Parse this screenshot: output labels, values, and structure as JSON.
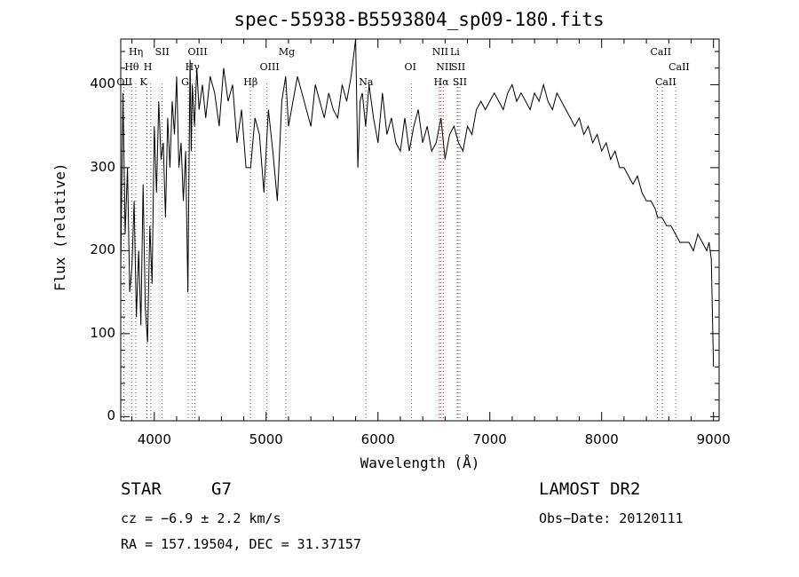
{
  "chart_data": {
    "type": "line",
    "title": "spec-55938-B5593804_sp09-180.fits",
    "xlabel": "Wavelength (Å)",
    "ylabel": "Flux (relative)",
    "xlim": [
      3700,
      9050
    ],
    "ylim": [
      -5,
      455
    ],
    "x_ticks": [
      "4000",
      "5000",
      "6000",
      "7000",
      "8000",
      "9000"
    ],
    "y_ticks": [
      "0",
      "100",
      "200",
      "300",
      "400"
    ],
    "grid": false,
    "series": [
      {
        "x": [
          3700,
          3720,
          3740,
          3760,
          3780,
          3800,
          3820,
          3840,
          3860,
          3880,
          3900,
          3920,
          3940,
          3960,
          3980,
          4000,
          4020,
          4040,
          4060,
          4080,
          4100,
          4120,
          4140,
          4160,
          4180,
          4200,
          4220,
          4240,
          4260,
          4280,
          4300,
          4320,
          4330,
          4340,
          4360,
          4380,
          4400,
          4430,
          4460,
          4500,
          4540,
          4580,
          4620,
          4660,
          4700,
          4740,
          4780,
          4820,
          4861,
          4900,
          4940,
          4980,
          5020,
          5060,
          5100,
          5140,
          5175,
          5200,
          5240,
          5280,
          5320,
          5360,
          5400,
          5440,
          5480,
          5520,
          5560,
          5600,
          5640,
          5680,
          5720,
          5760,
          5800,
          5820,
          5840,
          5860,
          5890,
          5920,
          5960,
          6000,
          6040,
          6080,
          6120,
          6160,
          6200,
          6240,
          6280,
          6320,
          6360,
          6400,
          6440,
          6480,
          6520,
          6563,
          6600,
          6640,
          6680,
          6720,
          6760,
          6800,
          6840,
          6880,
          6920,
          6960,
          7000,
          7040,
          7080,
          7120,
          7160,
          7200,
          7240,
          7280,
          7320,
          7360,
          7400,
          7440,
          7480,
          7520,
          7560,
          7600,
          7640,
          7680,
          7720,
          7760,
          7800,
          7840,
          7880,
          7920,
          7960,
          8000,
          8040,
          8080,
          8120,
          8160,
          8200,
          8240,
          8280,
          8320,
          8360,
          8400,
          8440,
          8480,
          8500,
          8540,
          8580,
          8620,
          8660,
          8700,
          8740,
          8780,
          8820,
          8860,
          8900,
          8940,
          8960,
          8980,
          9000
        ],
        "y": [
          180,
          390,
          220,
          300,
          150,
          180,
          260,
          120,
          200,
          110,
          280,
          130,
          90,
          230,
          160,
          350,
          270,
          380,
          310,
          330,
          240,
          360,
          300,
          380,
          340,
          410,
          300,
          330,
          260,
          320,
          150,
          430,
          320,
          400,
          350,
          420,
          370,
          400,
          360,
          410,
          390,
          350,
          420,
          380,
          400,
          330,
          370,
          300,
          300,
          360,
          340,
          270,
          370,
          320,
          260,
          380,
          410,
          350,
          380,
          410,
          390,
          370,
          350,
          400,
          380,
          360,
          390,
          370,
          360,
          400,
          380,
          410,
          460,
          300,
          380,
          390,
          350,
          400,
          360,
          330,
          390,
          340,
          360,
          330,
          320,
          360,
          320,
          350,
          370,
          330,
          350,
          320,
          330,
          360,
          310,
          340,
          350,
          330,
          320,
          350,
          340,
          370,
          380,
          370,
          380,
          390,
          380,
          370,
          390,
          400,
          380,
          390,
          380,
          370,
          390,
          380,
          400,
          380,
          370,
          390,
          380,
          370,
          360,
          350,
          360,
          340,
          350,
          330,
          340,
          320,
          330,
          310,
          320,
          300,
          300,
          290,
          280,
          290,
          270,
          260,
          260,
          250,
          240,
          240,
          230,
          230,
          220,
          210,
          210,
          210,
          200,
          220,
          210,
          200,
          210,
          190,
          60
        ]
      }
    ],
    "line_markers": [
      {
        "label": "Hη",
        "wave": 3835,
        "row": 0
      },
      {
        "label": "Hθ",
        "wave": 3798,
        "row": 1
      },
      {
        "label": "OII",
        "wave": 3727,
        "row": 2
      },
      {
        "label": "SII",
        "wave": 4070,
        "row": 0
      },
      {
        "label": "H",
        "wave": 3968,
        "row": 1
      },
      {
        "label": "K",
        "wave": 3934,
        "row": 2
      },
      {
        "label": "OIII",
        "wave": 4363,
        "row": 0
      },
      {
        "label": "Hγ",
        "wave": 4340,
        "row": 1
      },
      {
        "label": "G",
        "wave": 4304,
        "row": 2
      },
      {
        "label": "Mg",
        "wave": 5175,
        "row": 0
      },
      {
        "label": "OIII",
        "wave": 5007,
        "row": 1
      },
      {
        "label": "Hβ",
        "wave": 4861,
        "row": 2
      },
      {
        "label": "Na",
        "wave": 5893,
        "row": 2
      },
      {
        "label": "NII",
        "wave": 6548,
        "row": 0
      },
      {
        "label": "Li",
        "wave": 6708,
        "row": 0
      },
      {
        "label": "OI",
        "wave": 6300,
        "row": 1
      },
      {
        "label": "NII",
        "wave": 6583,
        "row": 1
      },
      {
        "label": "SII",
        "wave": 6716,
        "row": 1
      },
      {
        "label": "Hα",
        "wave": 6563,
        "row": 2
      },
      {
        "label": "SII",
        "wave": 6731,
        "row": 2
      },
      {
        "label": "CaII",
        "wave": 8498,
        "row": 0
      },
      {
        "label": "CaII",
        "wave": 8662,
        "row": 1
      },
      {
        "label": "CaII",
        "wave": 8542,
        "row": 2
      }
    ]
  },
  "info": {
    "class": "STAR",
    "subclass": "G7",
    "survey": "LAMOST DR2",
    "cz": "cz = −6.9 ± 2.2 km/s",
    "obs_date": "Obs−Date: 20120111",
    "radec": "RA = 157.19504, DEC =  31.37157"
  }
}
